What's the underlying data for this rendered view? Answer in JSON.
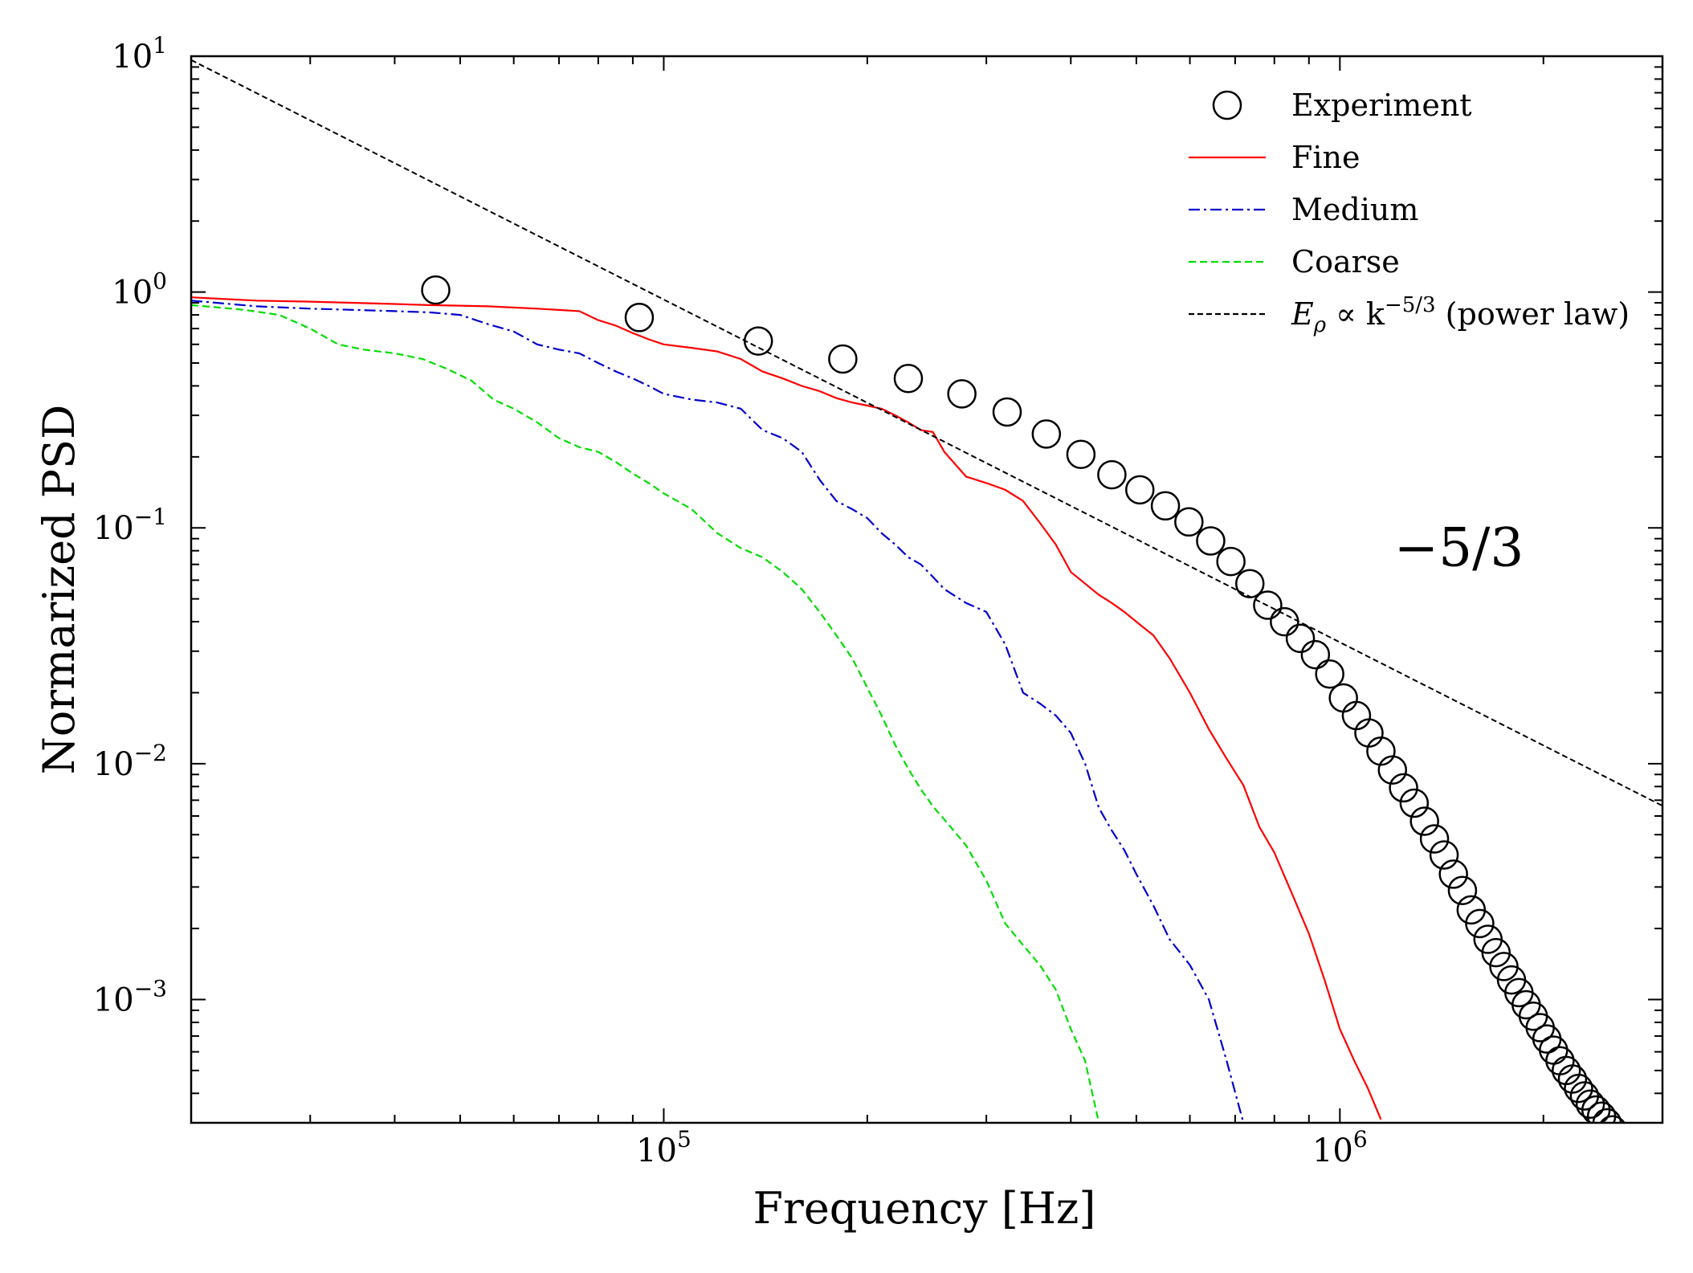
{
  "chart_data": {
    "type": "line",
    "title": "",
    "xlabel": "Frequency [Hz]",
    "ylabel": "Normarized PSD",
    "xscale": "log",
    "yscale": "log",
    "xlim": [
      20000,
      3000000
    ],
    "ylim": [
      0.0003,
      10
    ],
    "x_ticks": [
      {
        "value": 100000,
        "base": "10",
        "exp": "5"
      },
      {
        "value": 1000000,
        "base": "10",
        "exp": "6"
      }
    ],
    "y_ticks": [
      {
        "value": 10,
        "base": "10",
        "exp": "1"
      },
      {
        "value": 1,
        "base": "10",
        "exp": "0"
      },
      {
        "value": 0.1,
        "base": "10",
        "exp": "−1"
      },
      {
        "value": 0.01,
        "base": "10",
        "exp": "−2"
      },
      {
        "value": 0.001,
        "base": "10",
        "exp": "−3"
      }
    ],
    "grid": false,
    "legend_position": "top-right",
    "annotation": {
      "text": "−5/3",
      "x": 1500000,
      "y": 0.082
    },
    "series": [
      {
        "name": "Experiment",
        "style": "markers",
        "marker": "open-circle",
        "color": "#000000",
        "x": [
          46000,
          92000,
          138000,
          184000,
          230000,
          276000,
          322000,
          368000,
          414000,
          460000,
          506000,
          552000,
          598000,
          644000,
          690000,
          736000,
          782000,
          828000,
          874000,
          920000,
          966000,
          1012000,
          1058000,
          1104000,
          1150000,
          1196000,
          1242000,
          1288000,
          1334000,
          1380000,
          1426000,
          1472000,
          1518000,
          1564000,
          1610000,
          1656000,
          1702000,
          1748000,
          1794000,
          1840000,
          1886000,
          1932000,
          1978000,
          2024000,
          2070000,
          2116000,
          2162000,
          2208000,
          2254000,
          2300000,
          2346000,
          2392000,
          2438000,
          2484000,
          2530000
        ],
        "y": [
          1.02,
          0.78,
          0.62,
          0.52,
          0.43,
          0.37,
          0.31,
          0.25,
          0.205,
          0.168,
          0.145,
          0.124,
          0.106,
          0.088,
          0.072,
          0.058,
          0.047,
          0.04,
          0.034,
          0.029,
          0.024,
          0.019,
          0.016,
          0.0135,
          0.0113,
          0.0094,
          0.0079,
          0.0068,
          0.0057,
          0.0048,
          0.0041,
          0.0034,
          0.0029,
          0.0024,
          0.0021,
          0.0018,
          0.00158,
          0.00138,
          0.00121,
          0.00107,
          0.00095,
          0.00085,
          0.00076,
          0.00068,
          0.00061,
          0.00055,
          0.0005,
          0.00046,
          0.00042,
          0.00039,
          0.00036,
          0.00034,
          0.00032,
          0.0003,
          0.00028
        ]
      },
      {
        "name": "Fine",
        "style": "solid",
        "color": "#ff0000",
        "x": [
          20000,
          25000,
          30000,
          35000,
          40000,
          45000,
          50000,
          55000,
          60000,
          65000,
          70000,
          75000,
          80000,
          85000,
          90000,
          95000,
          100000,
          110000,
          120000,
          130000,
          140000,
          150000,
          160000,
          170000,
          180000,
          190000,
          200000,
          210000,
          220000,
          230000,
          240000,
          250000,
          260000,
          280000,
          300000,
          320000,
          340000,
          360000,
          380000,
          400000,
          420000,
          440000,
          460000,
          480000,
          500000,
          530000,
          560000,
          600000,
          640000,
          680000,
          720000,
          760000,
          800000,
          850000,
          900000,
          950000,
          1000000,
          1050000,
          1100000,
          1150000
        ],
        "y": [
          0.95,
          0.92,
          0.91,
          0.9,
          0.89,
          0.88,
          0.875,
          0.87,
          0.86,
          0.85,
          0.84,
          0.83,
          0.76,
          0.72,
          0.67,
          0.63,
          0.6,
          0.58,
          0.56,
          0.52,
          0.46,
          0.43,
          0.4,
          0.38,
          0.355,
          0.34,
          0.33,
          0.32,
          0.3,
          0.28,
          0.26,
          0.255,
          0.21,
          0.165,
          0.155,
          0.145,
          0.13,
          0.105,
          0.085,
          0.065,
          0.058,
          0.052,
          0.048,
          0.044,
          0.04,
          0.035,
          0.028,
          0.02,
          0.014,
          0.0105,
          0.0081,
          0.0054,
          0.0042,
          0.0028,
          0.0019,
          0.0012,
          0.00075,
          0.00055,
          0.00042,
          0.00031
        ]
      },
      {
        "name": "Medium",
        "style": "dashdot",
        "color": "#0000cc",
        "x": [
          20000,
          25000,
          30000,
          35000,
          40000,
          45000,
          50000,
          55000,
          60000,
          65000,
          70000,
          75000,
          80000,
          85000,
          90000,
          95000,
          100000,
          110000,
          120000,
          130000,
          140000,
          150000,
          160000,
          170000,
          180000,
          190000,
          200000,
          210000,
          220000,
          230000,
          240000,
          250000,
          260000,
          280000,
          300000,
          320000,
          340000,
          360000,
          380000,
          400000,
          420000,
          440000,
          460000,
          480000,
          500000,
          530000,
          560000,
          600000,
          640000,
          680000,
          720000
        ],
        "y": [
          0.92,
          0.87,
          0.85,
          0.84,
          0.83,
          0.82,
          0.8,
          0.73,
          0.68,
          0.6,
          0.57,
          0.55,
          0.5,
          0.46,
          0.43,
          0.4,
          0.37,
          0.35,
          0.34,
          0.32,
          0.26,
          0.24,
          0.21,
          0.16,
          0.13,
          0.12,
          0.11,
          0.095,
          0.085,
          0.075,
          0.07,
          0.062,
          0.055,
          0.048,
          0.044,
          0.032,
          0.02,
          0.018,
          0.016,
          0.0135,
          0.01,
          0.0065,
          0.0052,
          0.0043,
          0.0034,
          0.0025,
          0.0018,
          0.0014,
          0.001,
          0.00055,
          0.0003
        ]
      },
      {
        "name": "Coarse",
        "style": "dashed",
        "color": "#00dd00",
        "x": [
          20000,
          22000,
          24000,
          27000,
          30000,
          33000,
          36000,
          40000,
          44000,
          48000,
          52000,
          56000,
          60000,
          65000,
          70000,
          75000,
          80000,
          85000,
          90000,
          95000,
          100000,
          110000,
          120000,
          130000,
          140000,
          150000,
          160000,
          170000,
          180000,
          190000,
          200000,
          210000,
          220000,
          230000,
          240000,
          250000,
          260000,
          280000,
          300000,
          320000,
          340000,
          360000,
          380000,
          400000,
          420000,
          440000
        ],
        "y": [
          0.88,
          0.86,
          0.84,
          0.8,
          0.7,
          0.6,
          0.57,
          0.55,
          0.52,
          0.47,
          0.42,
          0.35,
          0.32,
          0.28,
          0.24,
          0.22,
          0.21,
          0.19,
          0.17,
          0.155,
          0.14,
          0.12,
          0.095,
          0.082,
          0.075,
          0.065,
          0.055,
          0.044,
          0.035,
          0.028,
          0.021,
          0.016,
          0.012,
          0.0095,
          0.0078,
          0.0066,
          0.0058,
          0.0045,
          0.0032,
          0.0021,
          0.0017,
          0.0014,
          0.0011,
          0.00075,
          0.00055,
          0.0003
        ]
      },
      {
        "name": "Eρ ∝ k−5/3 (power law)",
        "style": "dashed-thin",
        "color": "#000000",
        "x": [
          20000,
          3000000
        ],
        "y": [
          9.64,
          0.00663
        ]
      }
    ],
    "legend": [
      {
        "series": "Experiment",
        "label": "Experiment"
      },
      {
        "series": "Fine",
        "label": "Fine"
      },
      {
        "series": "Medium",
        "label": "Medium"
      },
      {
        "series": "Coarse",
        "label": "Coarse"
      },
      {
        "series": "Eρ ∝ k−5/3 (power law)",
        "label_main": "E",
        "label_sub": "ρ",
        "label_mid": " ∝ k",
        "label_sup": "−5/3",
        "label_tail": " (power law)"
      }
    ]
  }
}
